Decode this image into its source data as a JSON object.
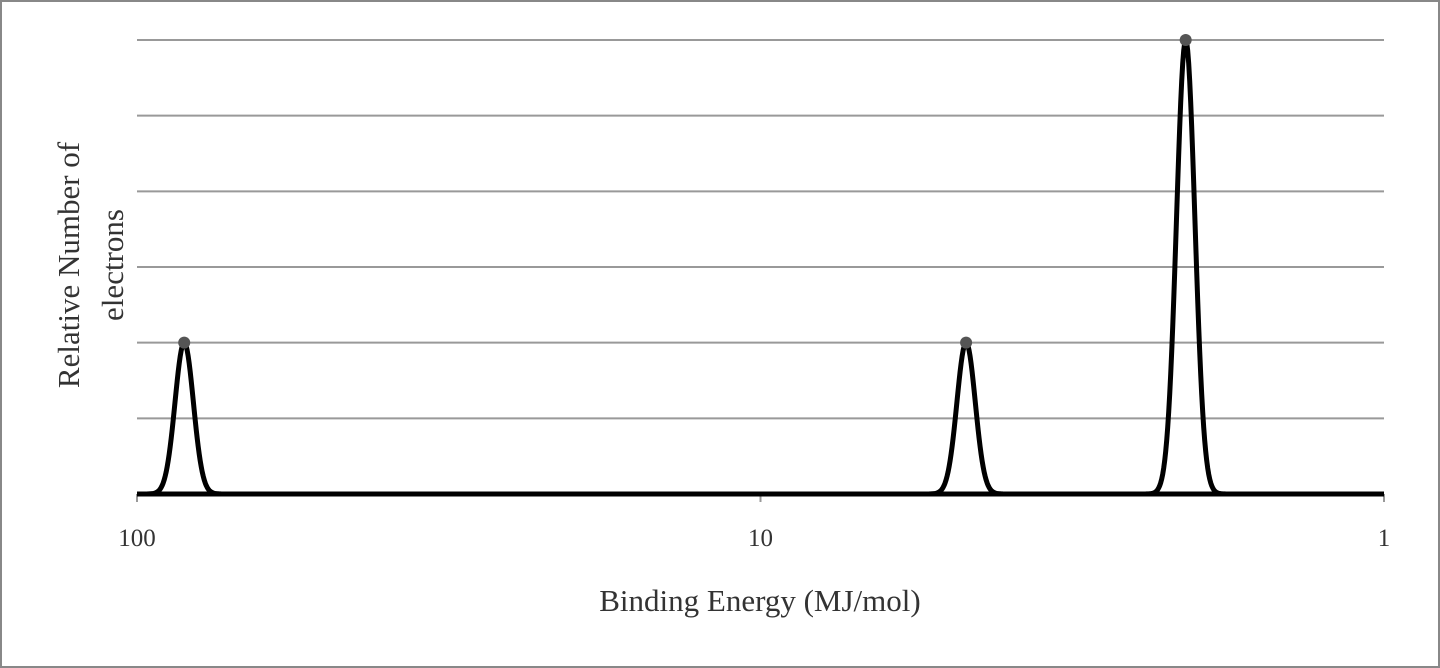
{
  "chart_data": {
    "type": "line",
    "xlabel": "Binding Energy (MJ/mol)",
    "ylabel": [
      "Relative Number of",
      "electrons"
    ],
    "x": [
      84.0,
      4.68,
      2.08
    ],
    "series": [
      {
        "color": "#000000",
        "values": [
          2,
          2,
          6
        ]
      }
    ],
    "xlim": [
      100,
      1
    ],
    "xticks": [
      100,
      10,
      1
    ],
    "xscale": "log",
    "ylim": [
      0,
      6
    ],
    "yticks": [
      0,
      1,
      2,
      3,
      4,
      5,
      6
    ],
    "grid": true
  }
}
